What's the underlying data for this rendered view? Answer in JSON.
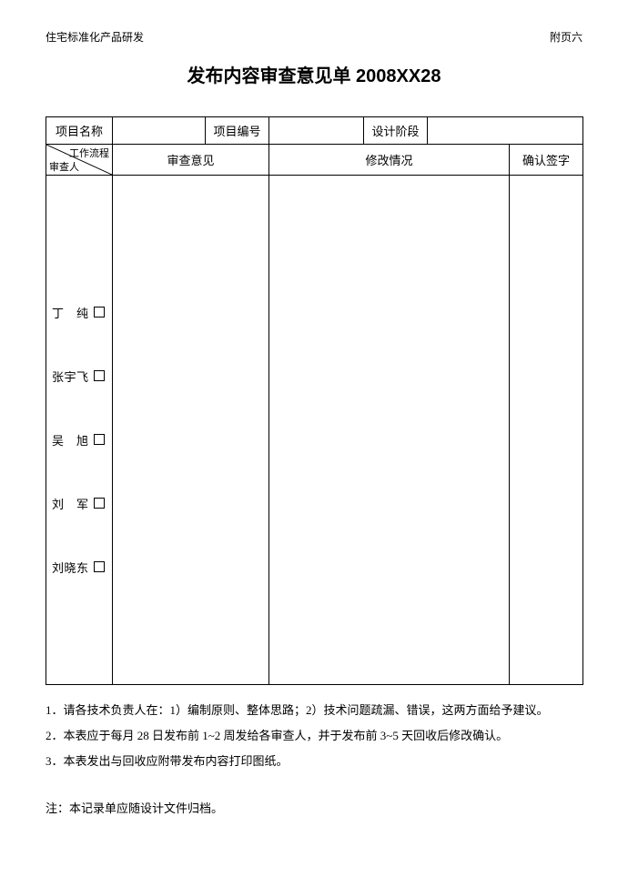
{
  "header": {
    "left": "住宅标准化产品研发",
    "right": "附页六"
  },
  "title": "发布内容审查意见单 2008XX28",
  "infoRow": {
    "label1": "项目名称",
    "value1": "",
    "label2": "项目编号",
    "value2": "",
    "label3": "设计阶段",
    "value3": ""
  },
  "columnHeaders": {
    "diagonal": {
      "top": "工作流程",
      "bottom": "审查人"
    },
    "col2": "审查意见",
    "col3": "修改情况",
    "col4": "确认签字"
  },
  "reviewers": [
    {
      "name": "丁　纯"
    },
    {
      "name": "张宇飞"
    },
    {
      "name": "吴　旭"
    },
    {
      "name": "刘　军"
    },
    {
      "name": "刘晓东"
    }
  ],
  "notes": [
    "1．请各技术负责人在：1）编制原则、整体思路；2）技术问题疏漏、错误，这两方面给予建议。",
    "2．本表应于每月 28 日发布前 1~2 周发给各审查人，并于发布前 3~5 天回收后修改确认。",
    "3．本表发出与回收应附带发布内容打印图纸。"
  ],
  "footnote": "注：本记录单应随设计文件归档。",
  "style": {
    "colWidths": {
      "c1": "92px",
      "c2": "230px",
      "c3": "175px",
      "c4": "82px"
    }
  }
}
